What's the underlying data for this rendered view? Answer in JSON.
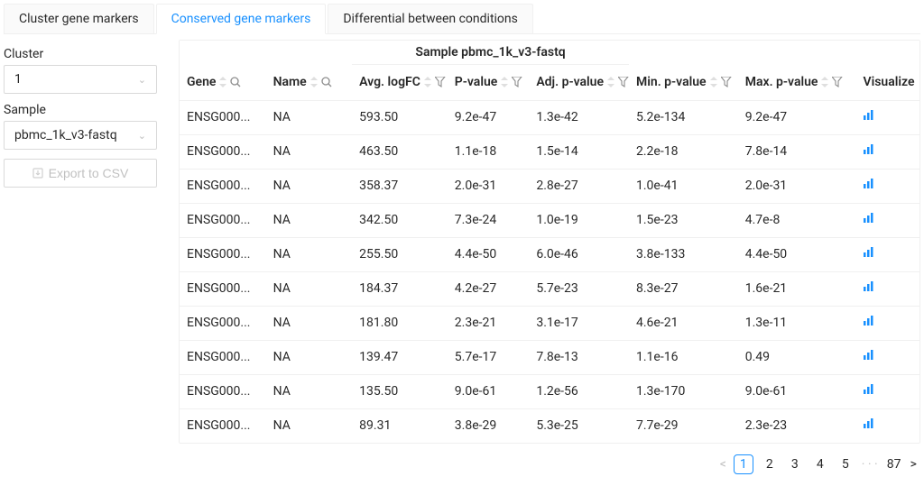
{
  "tabs": [
    {
      "label": "Cluster gene markers"
    },
    {
      "label": "Conserved gene markers"
    },
    {
      "label": "Differential between conditions"
    }
  ],
  "active_tab": 1,
  "sidebar": {
    "cluster_label": "Cluster",
    "cluster_value": "1",
    "sample_label": "Sample",
    "sample_value": "pbmc_1k_v3-fastq",
    "export_label": "Export to CSV"
  },
  "table": {
    "group_header": "Sample pbmc_1k_v3-fastq",
    "columns": {
      "gene": "Gene",
      "name": "Name",
      "avg_logfc": "Avg. logFC",
      "pvalue": "P-value",
      "adj_pvalue": "Adj. p-value",
      "min_pvalue": "Min. p-value",
      "max_pvalue": "Max. p-value",
      "visualize": "Visualize"
    },
    "col_widths": {
      "gene": "95px",
      "name": "95px",
      "avg_logfc": "105px",
      "pvalue": "90px",
      "adj_pvalue": "110px",
      "min_pvalue": "120px",
      "max_pvalue": "130px",
      "visualize": "70px"
    },
    "rows": [
      {
        "gene": "ENSG000...",
        "name": "NA",
        "avg_logfc": "593.50",
        "pvalue": "9.2e-47",
        "adj_pvalue": "1.3e-42",
        "min_pvalue": "5.2e-134",
        "max_pvalue": "9.2e-47"
      },
      {
        "gene": "ENSG000...",
        "name": "NA",
        "avg_logfc": "463.50",
        "pvalue": "1.1e-18",
        "adj_pvalue": "1.5e-14",
        "min_pvalue": "2.2e-18",
        "max_pvalue": "7.8e-14"
      },
      {
        "gene": "ENSG000...",
        "name": "NA",
        "avg_logfc": "358.37",
        "pvalue": "2.0e-31",
        "adj_pvalue": "2.8e-27",
        "min_pvalue": "1.0e-41",
        "max_pvalue": "2.0e-31"
      },
      {
        "gene": "ENSG000...",
        "name": "NA",
        "avg_logfc": "342.50",
        "pvalue": "7.3e-24",
        "adj_pvalue": "1.0e-19",
        "min_pvalue": "1.5e-23",
        "max_pvalue": "4.7e-8"
      },
      {
        "gene": "ENSG000...",
        "name": "NA",
        "avg_logfc": "255.50",
        "pvalue": "4.4e-50",
        "adj_pvalue": "6.0e-46",
        "min_pvalue": "3.8e-133",
        "max_pvalue": "4.4e-50"
      },
      {
        "gene": "ENSG000...",
        "name": "NA",
        "avg_logfc": "184.37",
        "pvalue": "4.2e-27",
        "adj_pvalue": "5.7e-23",
        "min_pvalue": "8.3e-27",
        "max_pvalue": "1.6e-21"
      },
      {
        "gene": "ENSG000...",
        "name": "NA",
        "avg_logfc": "181.80",
        "pvalue": "2.3e-21",
        "adj_pvalue": "3.1e-17",
        "min_pvalue": "4.6e-21",
        "max_pvalue": "1.3e-11"
      },
      {
        "gene": "ENSG000...",
        "name": "NA",
        "avg_logfc": "139.47",
        "pvalue": "5.7e-17",
        "adj_pvalue": "7.8e-13",
        "min_pvalue": "1.1e-16",
        "max_pvalue": "0.49"
      },
      {
        "gene": "ENSG000...",
        "name": "NA",
        "avg_logfc": "135.50",
        "pvalue": "9.0e-61",
        "adj_pvalue": "1.2e-56",
        "min_pvalue": "1.3e-170",
        "max_pvalue": "9.0e-61"
      },
      {
        "gene": "ENSG000...",
        "name": "NA",
        "avg_logfc": "89.31",
        "pvalue": "3.8e-29",
        "adj_pvalue": "5.3e-25",
        "min_pvalue": "7.7e-29",
        "max_pvalue": "2.3e-23"
      }
    ]
  },
  "pagination": {
    "pages_visible": [
      "1",
      "2",
      "3",
      "4",
      "5"
    ],
    "current": "1",
    "last": "87"
  },
  "colors": {
    "accent": "#1890ff",
    "border": "#f0f0f0",
    "muted": "#bfbfbf"
  }
}
